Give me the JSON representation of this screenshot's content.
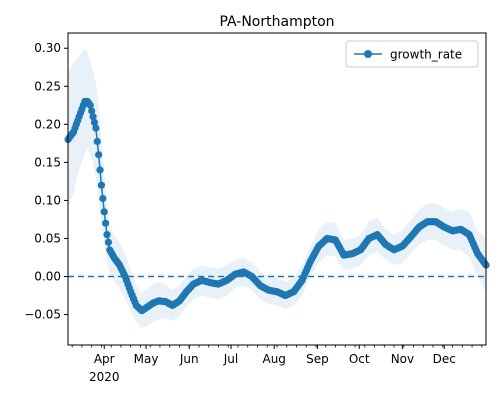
{
  "chart_data": {
    "type": "line",
    "title": "PA-Northampton",
    "xlabel": "",
    "ylabel": "",
    "x_start": "2020-03-06",
    "x_end": "2020-12-31",
    "ylim": [
      -0.09,
      0.32
    ],
    "y_ticks": [
      -0.05,
      0.0,
      0.05,
      0.1,
      0.15,
      0.2,
      0.25,
      0.3
    ],
    "y_tick_labels": [
      "−0.05",
      "0.00",
      "0.05",
      "0.10",
      "0.15",
      "0.20",
      "0.25",
      "0.30"
    ],
    "x_ticks": [
      {
        "date": "2020-04-01",
        "label": "Apr"
      },
      {
        "date": "2020-05-01",
        "label": "May"
      },
      {
        "date": "2020-06-01",
        "label": "Jun"
      },
      {
        "date": "2020-07-01",
        "label": "Jul"
      },
      {
        "date": "2020-08-01",
        "label": "Aug"
      },
      {
        "date": "2020-09-01",
        "label": "Sep"
      },
      {
        "date": "2020-10-01",
        "label": "Oct"
      },
      {
        "date": "2020-11-01",
        "label": "Nov"
      },
      {
        "date": "2020-12-01",
        "label": "Dec"
      }
    ],
    "year_label": "2020",
    "grid": false,
    "legend": {
      "position": "top-right"
    },
    "reference_line": {
      "y": 0.0,
      "style": "dashed"
    },
    "series": [
      {
        "name": "growth_rate",
        "color": "#1f77b4",
        "band_color": "#1f77b4",
        "x": [
          "2020-03-06",
          "2020-03-10",
          "2020-03-14",
          "2020-03-18",
          "2020-03-20",
          "2020-03-22",
          "2020-03-24",
          "2020-03-26",
          "2020-03-28",
          "2020-03-30",
          "2020-04-01",
          "2020-04-03",
          "2020-04-05",
          "2020-04-08",
          "2020-04-12",
          "2020-04-16",
          "2020-04-20",
          "2020-04-24",
          "2020-04-28",
          "2020-05-02",
          "2020-05-06",
          "2020-05-10",
          "2020-05-15",
          "2020-05-20",
          "2020-05-25",
          "2020-05-30",
          "2020-06-04",
          "2020-06-10",
          "2020-06-16",
          "2020-06-22",
          "2020-06-28",
          "2020-07-04",
          "2020-07-10",
          "2020-07-16",
          "2020-07-22",
          "2020-07-28",
          "2020-08-03",
          "2020-08-09",
          "2020-08-15",
          "2020-08-21",
          "2020-08-27",
          "2020-09-02",
          "2020-09-08",
          "2020-09-14",
          "2020-09-20",
          "2020-09-26",
          "2020-10-02",
          "2020-10-08",
          "2020-10-14",
          "2020-10-20",
          "2020-10-26",
          "2020-11-01",
          "2020-11-07",
          "2020-11-13",
          "2020-11-19",
          "2020-11-25",
          "2020-12-01",
          "2020-12-07",
          "2020-12-13",
          "2020-12-19",
          "2020-12-25",
          "2020-12-31"
        ],
        "y": [
          0.18,
          0.19,
          0.21,
          0.23,
          0.23,
          0.225,
          0.21,
          0.195,
          0.16,
          0.12,
          0.085,
          0.055,
          0.035,
          0.025,
          0.015,
          0.0,
          -0.02,
          -0.038,
          -0.045,
          -0.04,
          -0.035,
          -0.032,
          -0.033,
          -0.038,
          -0.032,
          -0.02,
          -0.01,
          -0.005,
          -0.008,
          -0.01,
          -0.005,
          0.003,
          0.006,
          0.0,
          -0.012,
          -0.018,
          -0.02,
          -0.025,
          -0.02,
          -0.005,
          0.02,
          0.04,
          0.05,
          0.048,
          0.028,
          0.03,
          0.035,
          0.05,
          0.055,
          0.042,
          0.035,
          0.04,
          0.052,
          0.065,
          0.072,
          0.072,
          0.065,
          0.06,
          0.062,
          0.055,
          0.03,
          0.015
        ],
        "lower": [
          0.09,
          0.11,
          0.14,
          0.16,
          0.17,
          0.16,
          0.15,
          0.13,
          0.1,
          0.07,
          0.045,
          0.02,
          0.005,
          -0.005,
          -0.015,
          -0.03,
          -0.045,
          -0.06,
          -0.068,
          -0.065,
          -0.06,
          -0.057,
          -0.055,
          -0.058,
          -0.052,
          -0.04,
          -0.03,
          -0.025,
          -0.028,
          -0.03,
          -0.025,
          -0.015,
          -0.012,
          -0.018,
          -0.03,
          -0.036,
          -0.038,
          -0.043,
          -0.038,
          -0.025,
          0.0,
          0.018,
          0.028,
          0.026,
          0.008,
          0.01,
          0.015,
          0.028,
          0.033,
          0.022,
          0.015,
          0.018,
          0.03,
          0.042,
          0.048,
          0.048,
          0.04,
          0.035,
          0.035,
          0.025,
          0.0,
          -0.02
        ],
        "upper": [
          0.27,
          0.28,
          0.29,
          0.3,
          0.295,
          0.285,
          0.27,
          0.255,
          0.225,
          0.18,
          0.135,
          0.095,
          0.07,
          0.055,
          0.045,
          0.03,
          0.008,
          -0.012,
          -0.022,
          -0.016,
          -0.01,
          -0.007,
          -0.011,
          -0.018,
          -0.012,
          0.0,
          0.01,
          0.015,
          0.012,
          0.01,
          0.015,
          0.022,
          0.025,
          0.018,
          0.006,
          0.0,
          -0.002,
          -0.007,
          -0.002,
          0.015,
          0.04,
          0.062,
          0.072,
          0.07,
          0.048,
          0.05,
          0.055,
          0.072,
          0.077,
          0.062,
          0.055,
          0.062,
          0.074,
          0.088,
          0.096,
          0.096,
          0.09,
          0.085,
          0.089,
          0.085,
          0.06,
          0.05
        ]
      }
    ]
  }
}
